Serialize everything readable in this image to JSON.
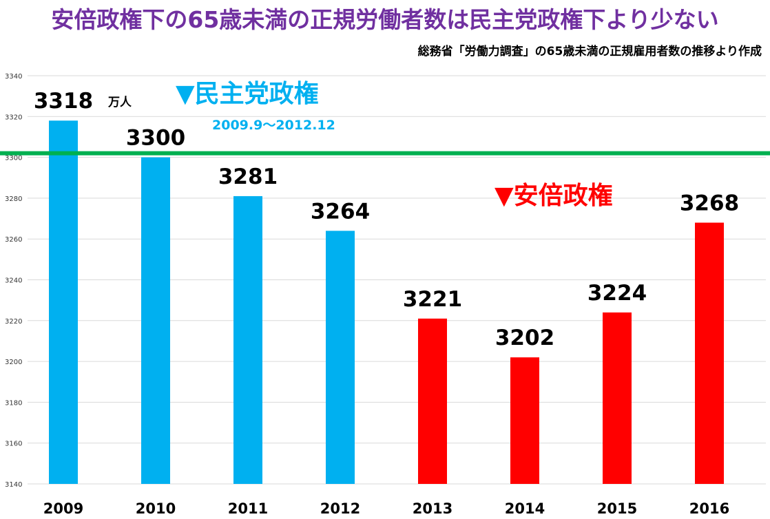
{
  "header": {
    "title": "安倍政権下の65歳未満の正規労働者数は民主党政権下より少ない",
    "subtitle": "総務省「労働力調査」の65歳未満の正規雇用者数の推移より作成"
  },
  "annotations": {
    "dem_label": "▼民主党政権",
    "dem_period": "2009.9〜2012.12",
    "abe_label": "▼安倍政権",
    "unit": "万人"
  },
  "colors": {
    "dem": "#00b0f0",
    "abe": "#ff0000",
    "reference_line": "#00b050",
    "title": "#7030a0"
  },
  "chart_data": {
    "type": "bar",
    "categories": [
      "2009",
      "2010",
      "2011",
      "2012",
      "2013",
      "2014",
      "2015",
      "2016"
    ],
    "values": [
      3318,
      3300,
      3281,
      3264,
      3221,
      3202,
      3224,
      3268
    ],
    "data_labels": [
      "3318",
      "3300",
      "3281",
      "3264",
      "3221",
      "3202",
      "3224",
      "3268"
    ],
    "bar_groups": [
      "dem",
      "dem",
      "dem",
      "dem",
      "abe",
      "abe",
      "abe",
      "abe"
    ],
    "ylim": [
      3140,
      3340
    ],
    "yticks": [
      3140,
      3160,
      3180,
      3200,
      3220,
      3240,
      3260,
      3280,
      3300,
      3320,
      3340
    ],
    "reference_line_value": 3302,
    "grid": true,
    "legend": "none"
  }
}
